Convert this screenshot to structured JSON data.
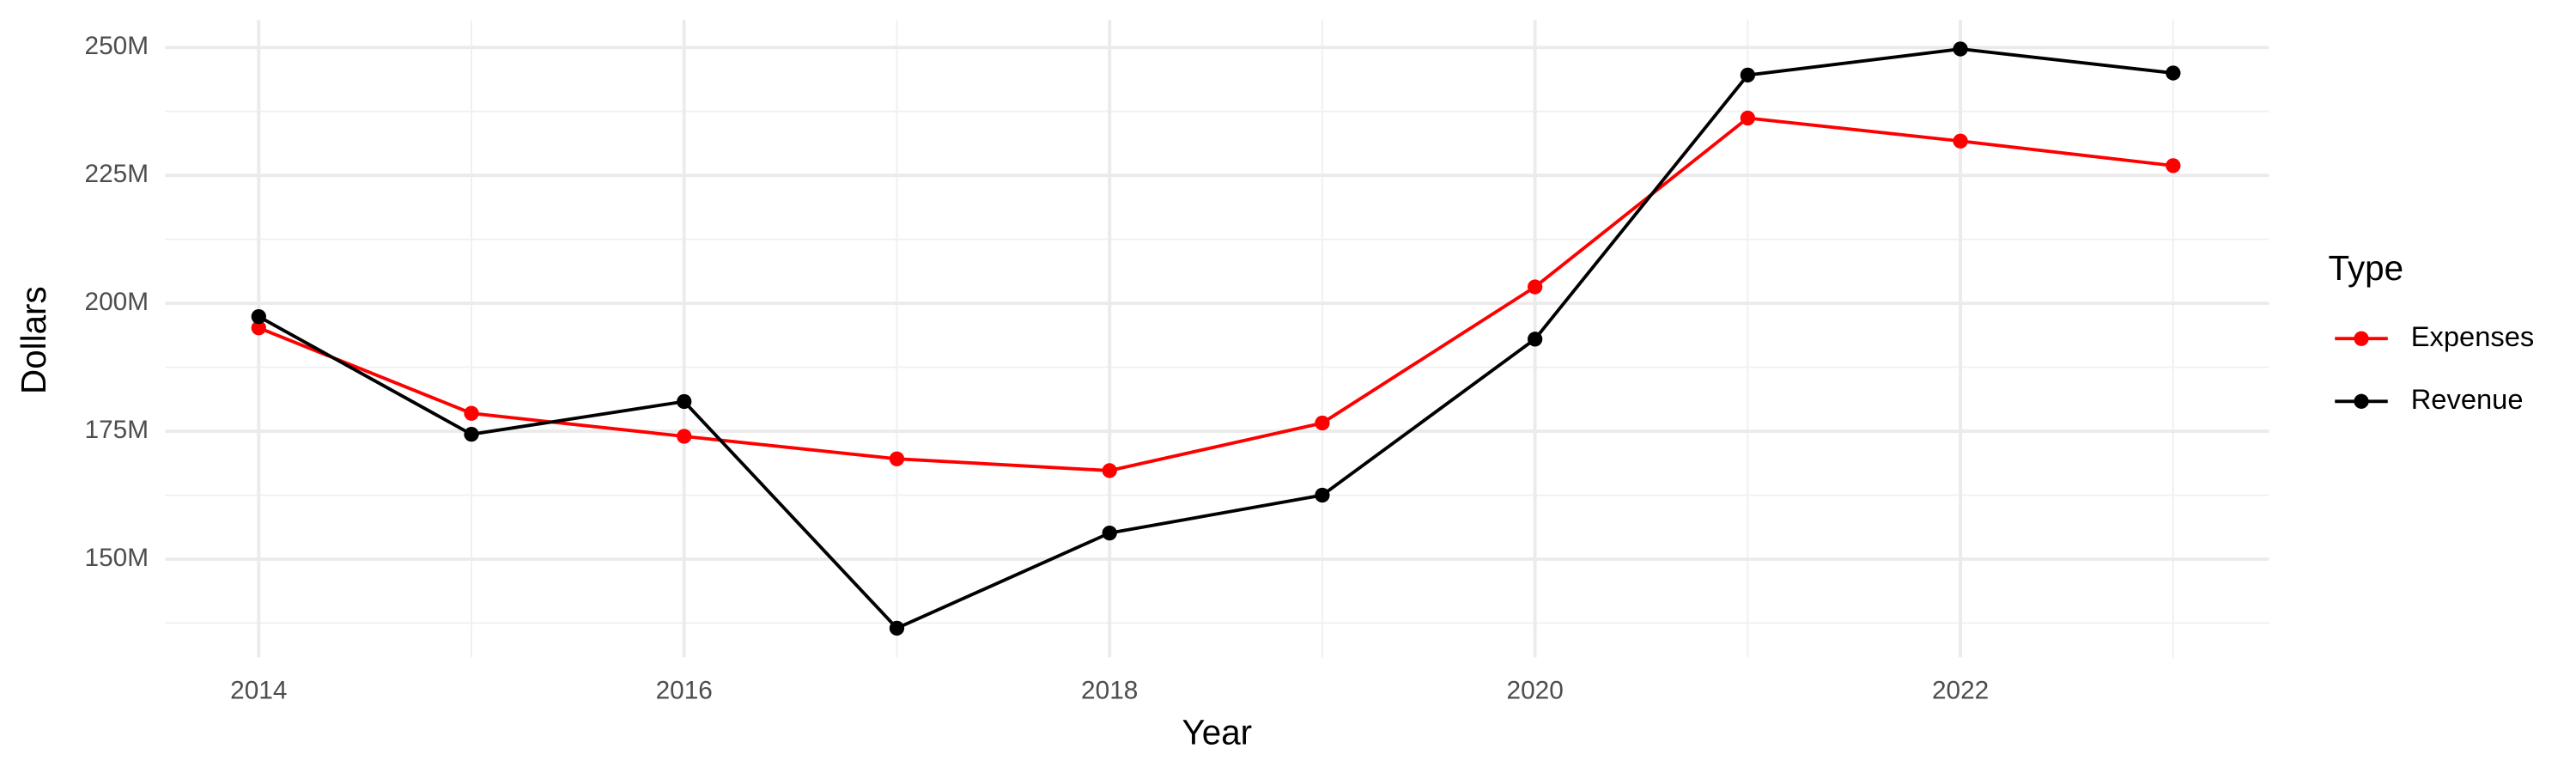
{
  "chart_data": {
    "type": "line",
    "x_label": "Year",
    "y_label": "Dollars",
    "legend_title": "Type",
    "legend_position": "right",
    "grid": true,
    "x": [
      2014,
      2015,
      2016,
      2017,
      2018,
      2019,
      2020,
      2021,
      2022,
      2023
    ],
    "series": [
      {
        "name": "Expenses",
        "color": "#ff0000",
        "values": [
          195200000,
          178500000,
          174000000,
          169600000,
          167300000,
          176600000,
          203200000,
          236200000,
          231700000,
          226900000
        ]
      },
      {
        "name": "Revenue",
        "color": "#000000",
        "values": [
          197400000,
          174400000,
          180800000,
          136500000,
          155100000,
          162500000,
          193000000,
          244600000,
          249700000,
          245000000
        ]
      }
    ],
    "xlim": [
      2013.56,
      2023.45
    ],
    "xticks": [
      2014,
      2016,
      2018,
      2020,
      2022
    ],
    "ylim": [
      130800000,
      255400000
    ],
    "yticks": [
      {
        "value": 150000000,
        "label": "150M"
      },
      {
        "value": 175000000,
        "label": "175M"
      },
      {
        "value": 200000000,
        "label": "200M"
      },
      {
        "value": 225000000,
        "label": "225M"
      },
      {
        "value": 250000000,
        "label": "250M"
      }
    ]
  }
}
